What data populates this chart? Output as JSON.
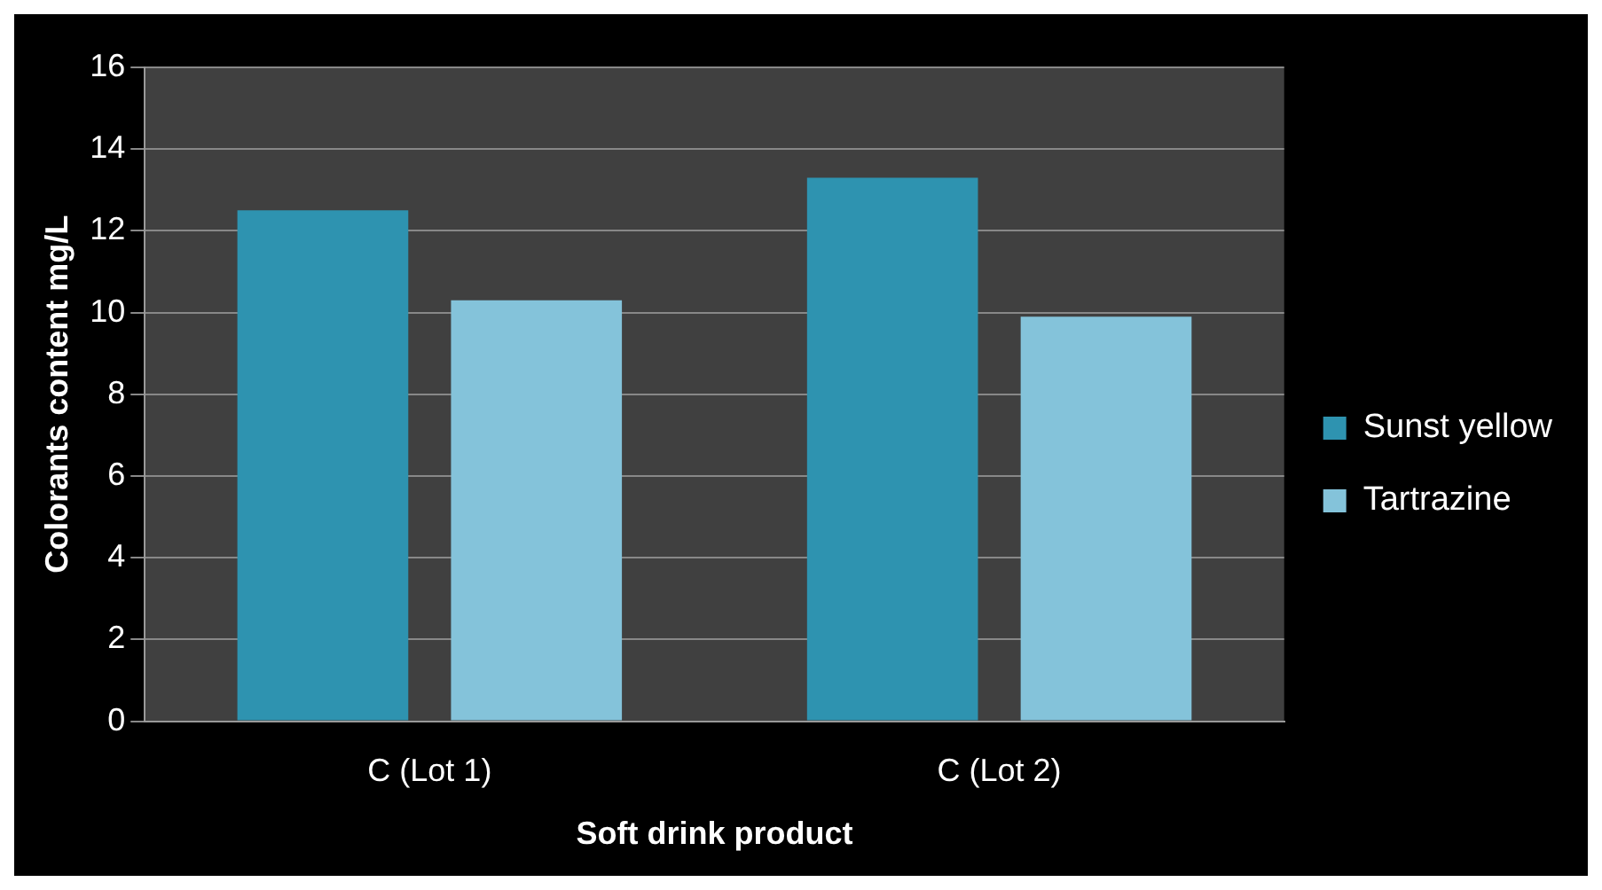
{
  "chart_data": {
    "type": "bar",
    "xlabel": "Soft drink product",
    "ylabel": "Colorants content mg/L",
    "categories": [
      "C (Lot 1)",
      "C (Lot 2)"
    ],
    "series": [
      {
        "name": "Sunst yellow",
        "color": "#2e93b0",
        "values": [
          12.5,
          13.3
        ]
      },
      {
        "name": "Tartrazine",
        "color": "#84c3da",
        "values": [
          10.3,
          9.9
        ]
      }
    ],
    "ylim": [
      0,
      16
    ],
    "yticks": [
      0,
      2,
      4,
      6,
      8,
      10,
      12,
      14,
      16
    ],
    "grid": "y",
    "legend": "right"
  }
}
